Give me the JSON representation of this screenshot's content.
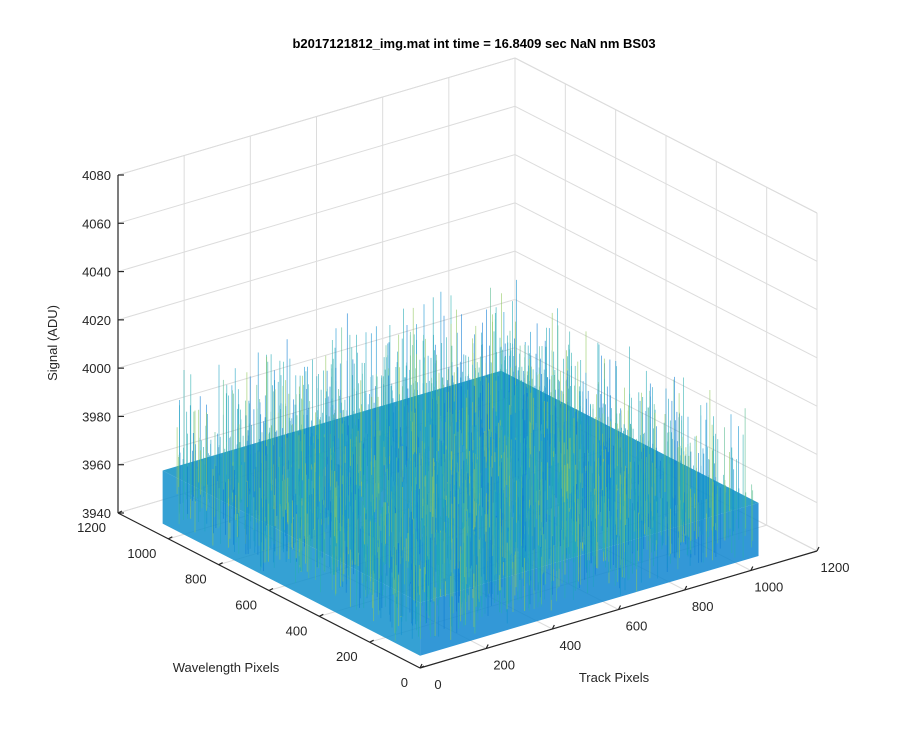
{
  "chart_data": {
    "type": "surface",
    "title": "b2017121812_img.mat int time = 16.8409 sec  NaN nm BS03",
    "xlabel": "Track Pixels",
    "ylabel": "Wavelength Pixels",
    "zlabel": "Signal (ADU)",
    "xlim": [
      0,
      1200
    ],
    "ylim": [
      0,
      1200
    ],
    "zlim": [
      3940,
      4080
    ],
    "x_ticks": [
      "0",
      "200",
      "400",
      "600",
      "800",
      "1000",
      "1200"
    ],
    "y_ticks": [
      "0",
      "200",
      "400",
      "600",
      "800",
      "1000",
      "1200"
    ],
    "z_ticks": [
      "3940",
      "3960",
      "3980",
      "4000",
      "4020",
      "4040",
      "4060",
      "4080"
    ],
    "data_extent": {
      "x": [
        1,
        1024
      ],
      "y": [
        1,
        1024
      ]
    },
    "surface_mean": 3967,
    "surface_noise_range": [
      3945,
      4010
    ],
    "grid": true,
    "colormap": "parula",
    "colors": {
      "low": "#0a7bd4",
      "mid": "#1fa8b4",
      "high": "#8fc85c"
    }
  }
}
